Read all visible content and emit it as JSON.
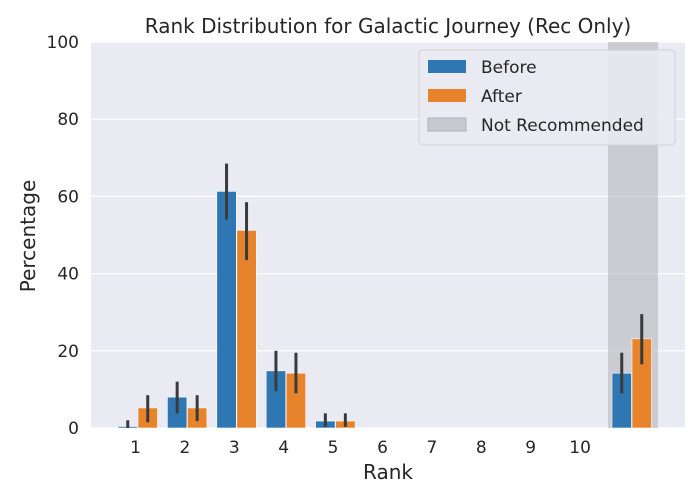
{
  "chart_data": {
    "type": "bar",
    "title": "Rank Distribution for Galactic Journey (Rec Only)",
    "xlabel": "Rank",
    "ylabel": "Percentage",
    "ylim": [
      0,
      100
    ],
    "yticks": [
      0,
      20,
      40,
      60,
      80,
      100
    ],
    "categories": [
      "1",
      "2",
      "3",
      "4",
      "5",
      "6",
      "7",
      "8",
      "9",
      "10",
      "Not Recommended"
    ],
    "tick_labels": [
      "1",
      "2",
      "3",
      "4",
      "5",
      "6",
      "7",
      "8",
      "9",
      "10"
    ],
    "series": [
      {
        "name": "Before",
        "color": "#2f77b3",
        "values": [
          0.4,
          8,
          61.3,
          14.8,
          1.8,
          0,
          0,
          0,
          0,
          0,
          14.2
        ],
        "ci_low": [
          0,
          3.8,
          54,
          9.5,
          0.3,
          0,
          0,
          0,
          0,
          0,
          9
        ],
        "ci_high": [
          2,
          12,
          68.5,
          20,
          3.8,
          0,
          0,
          0,
          0,
          0,
          19.5
        ]
      },
      {
        "name": "After",
        "color": "#e6832b",
        "values": [
          5.2,
          5.2,
          51.2,
          14.2,
          1.8,
          0,
          0,
          0,
          0,
          0,
          23.1
        ],
        "ci_low": [
          1.5,
          1.8,
          43.5,
          9,
          0.3,
          0,
          0,
          0,
          0,
          0,
          16.5
        ],
        "ci_high": [
          8.5,
          8.5,
          58.5,
          19.5,
          3.8,
          0,
          0,
          0,
          0,
          0,
          29.5
        ]
      }
    ],
    "shaded_region": {
      "label": "Not Recommended",
      "color": "#b0b0b8"
    },
    "legend": {
      "placement": "top-right",
      "entries": [
        "Before",
        "After",
        "Not Recommended"
      ]
    },
    "grid": true,
    "background": "#eaeaf2",
    "error_bar_color": "#3a3a3a"
  }
}
